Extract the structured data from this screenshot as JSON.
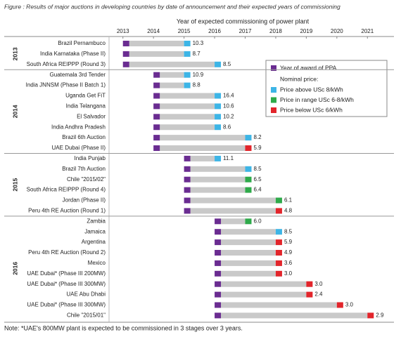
{
  "chart_data": {
    "type": "gantt",
    "title": "Figure   : Results of major auctions in developing countries by date of announcement and their expected years of commissioning",
    "x_label": "Year of expected commissioning of power plant",
    "xlim": [
      2012.5,
      2021.5
    ],
    "xticks": [
      2013,
      2014,
      2015,
      2016,
      2017,
      2018,
      2019,
      2020,
      2021
    ],
    "bar_color": "#c9c9c9",
    "legend": {
      "award": {
        "name": "Year of award of PPA",
        "color": "#6a2c91"
      },
      "price_title": "Nominal price:",
      "bands": [
        {
          "name": "Price above USc 8/kWh",
          "color": "#3db5e6"
        },
        {
          "name": "Price in range USc 6-8/kWh",
          "color": "#2eaa4a"
        },
        {
          "name": "Price below USc 6/kWh",
          "color": "#e2252b"
        }
      ]
    },
    "groups": [
      {
        "name": "2013",
        "start": 2013,
        "rows": [
          {
            "name": "Brazil Pernambuco",
            "end": 2015,
            "price": 10.3,
            "band": 0
          },
          {
            "name": "India Karnataka (Phase II)",
            "end": 2015,
            "price": 8.7,
            "band": 0
          },
          {
            "name": "South Africa REIPPP (Round 3)",
            "end": 2016,
            "price": 8.5,
            "band": 0
          }
        ]
      },
      {
        "name": "2014",
        "start": 2014,
        "rows": [
          {
            "name": "Guatemala 3rd Tender",
            "end": 2015,
            "price": 10.9,
            "band": 0
          },
          {
            "name": "India JNNSM (Phase II Batch 1)",
            "end": 2015,
            "price": 8.8,
            "band": 0
          },
          {
            "name": "Uganda Get FiT",
            "end": 2016,
            "price": 16.4,
            "band": 0
          },
          {
            "name": "India Telangana",
            "end": 2016,
            "price": 10.6,
            "band": 0
          },
          {
            "name": "El Salvador",
            "end": 2016,
            "price": 10.2,
            "band": 0
          },
          {
            "name": "India Andhra Pradesh",
            "end": 2016,
            "price": 8.6,
            "band": 0
          },
          {
            "name": "Brazil 6th Auction",
            "end": 2017,
            "price": 8.2,
            "band": 0
          },
          {
            "name": "UAE Dubai (Phase II)",
            "end": 2017,
            "price": 5.9,
            "band": 2
          }
        ]
      },
      {
        "name": "2015",
        "start": 2015,
        "rows": [
          {
            "name": "India Punjab",
            "end": 2016,
            "price": 11.1,
            "band": 0
          },
          {
            "name": "Brazil 7th Auction",
            "end": 2017,
            "price": 8.5,
            "band": 0
          },
          {
            "name": "Chile \"2015/02\"",
            "end": 2017,
            "price": 6.5,
            "band": 1
          },
          {
            "name": "South Africa REIPPP (Round 4)",
            "end": 2017,
            "price": 6.4,
            "band": 1
          },
          {
            "name": "Jordan (Phase II)",
            "end": 2018,
            "price": 6.1,
            "band": 1
          },
          {
            "name": "Peru 4th RE Auction (Round 1)",
            "end": 2018,
            "price": 4.8,
            "band": 2
          }
        ]
      },
      {
        "name": "2016",
        "start": 2016,
        "rows": [
          {
            "name": "Zambia",
            "end": 2017,
            "price": 6,
            "price_label": "6.0",
            "band": 1
          },
          {
            "name": "Jamaica",
            "end": 2018,
            "price": 8.5,
            "band": 0
          },
          {
            "name": "Argentina",
            "end": 2018,
            "price": 5.9,
            "band": 2
          },
          {
            "name": "Peru 4th RE Auction (Round 2)",
            "end": 2018,
            "price": 4.9,
            "band": 2
          },
          {
            "name": "Mexico",
            "end": 2018,
            "price": 3.6,
            "band": 2
          },
          {
            "name": "UAE Dubai* (Phase III 200MW)",
            "end": 2018,
            "price": 3,
            "price_label": "3.0",
            "band": 2
          },
          {
            "name": "UAE Dubai* (Phase III 300MW)",
            "end": 2019,
            "price": 3,
            "price_label": "3.0",
            "band": 2
          },
          {
            "name": "UAE Abu Dhabi",
            "end": 2019,
            "price": 2.4,
            "band": 2
          },
          {
            "name": "UAE Dubai* (Phase III 300MW)",
            "end": 2020,
            "price": 3,
            "price_label": "3.0",
            "band": 2
          },
          {
            "name": "Chile \"2015/01\"",
            "end": 2021,
            "price": 2.9,
            "band": 2
          }
        ]
      }
    ],
    "note": "Note: *UAE's 800MW plant is expected to be commissioned in 3 stages over 3 years."
  }
}
